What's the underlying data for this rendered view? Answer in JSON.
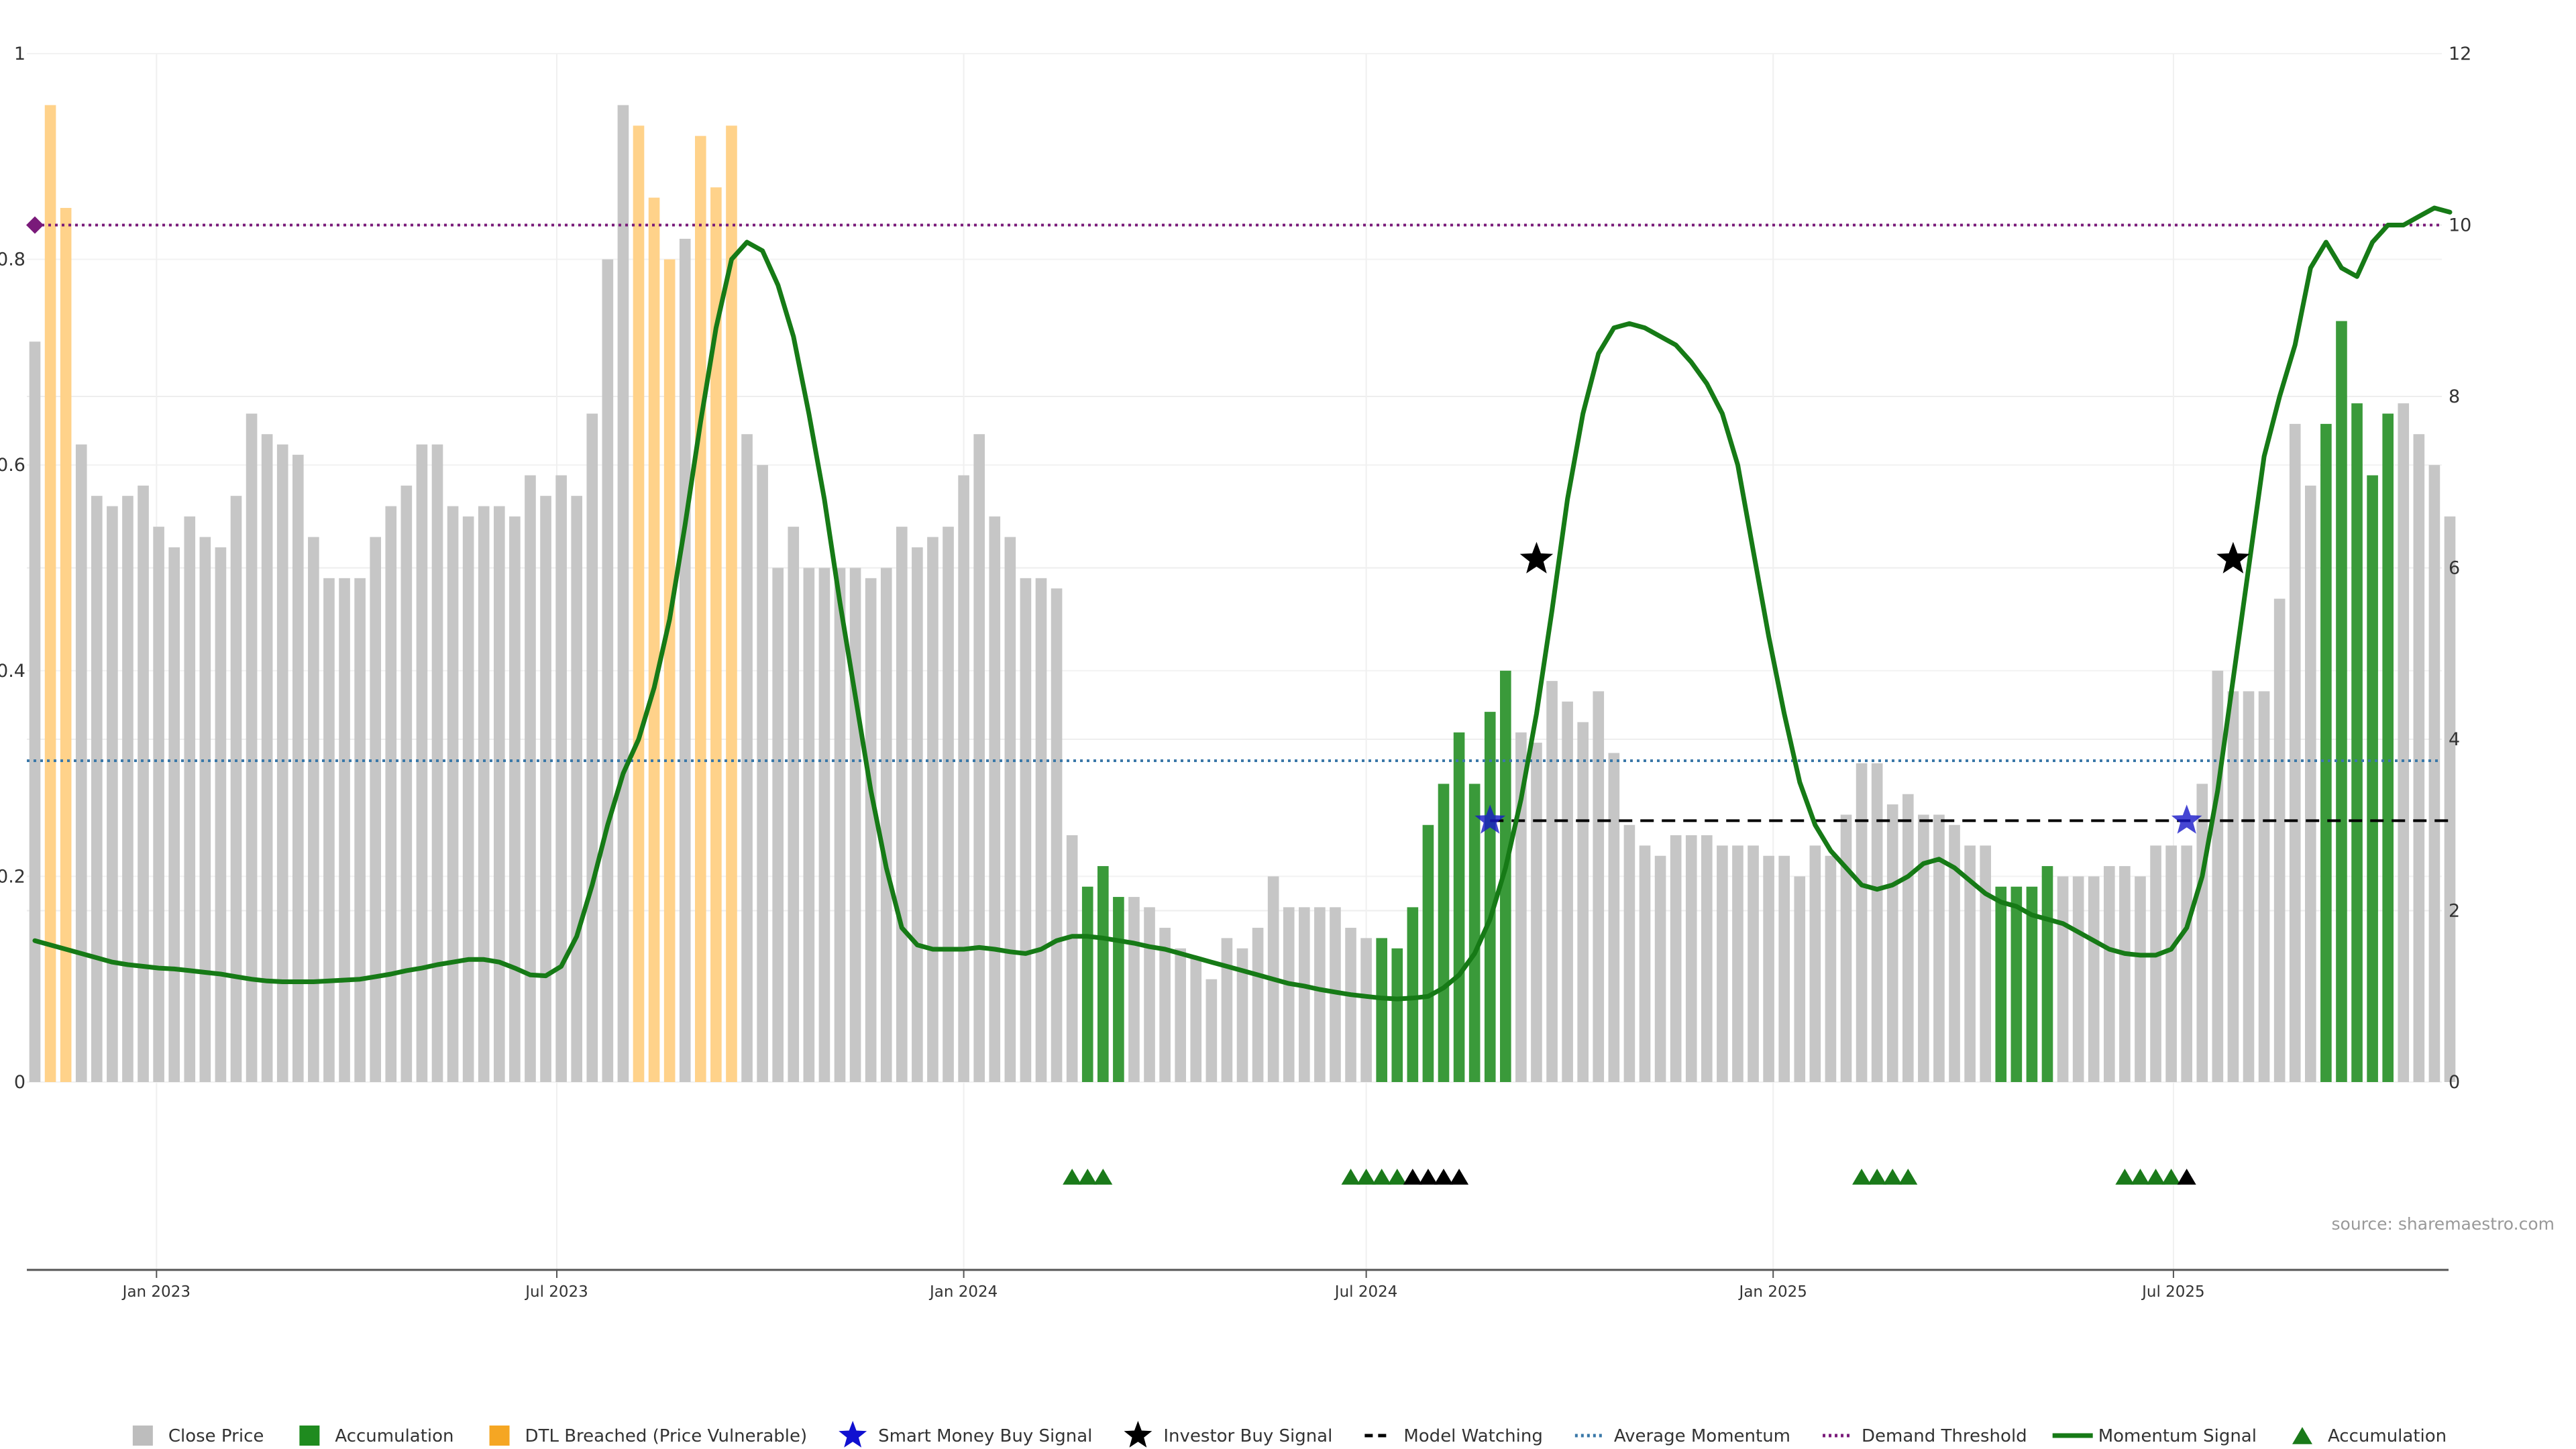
{
  "chart_data": {
    "type": "bar",
    "source_note": "source: sharemaestro.com",
    "left_axis": {
      "ticks": [
        0,
        0.2,
        0.4,
        0.6,
        0.8,
        1
      ],
      "tick_labels": [
        "0",
        "0.2",
        "0.4",
        "0.6",
        "0.8",
        "1"
      ],
      "ylim": [
        0,
        1
      ]
    },
    "right_axis": {
      "ticks": [
        0,
        2,
        4,
        6,
        8,
        10,
        12
      ],
      "tick_labels": [
        "0",
        "2",
        "4",
        "6",
        "8",
        "10",
        "12"
      ],
      "ylim": [
        0,
        12
      ]
    },
    "x_axis": {
      "start": "2022-11-07",
      "week_step": 1,
      "tick_dates": [
        "2023-01-01",
        "2023-07-01",
        "2024-01-01",
        "2024-07-01",
        "2025-01-01",
        "2025-07-01"
      ],
      "tick_labels": [
        "Jan 2023",
        "Jul 2023",
        "Jan 2024",
        "Jul 2024",
        "Jan 2025",
        "Jul 2025"
      ]
    },
    "bars": {
      "values": [
        0.72,
        0.95,
        0.85,
        0.62,
        0.57,
        0.56,
        0.57,
        0.58,
        0.54,
        0.52,
        0.55,
        0.53,
        0.52,
        0.57,
        0.65,
        0.63,
        0.62,
        0.61,
        0.53,
        0.49,
        0.49,
        0.49,
        0.53,
        0.56,
        0.58,
        0.62,
        0.62,
        0.56,
        0.55,
        0.56,
        0.56,
        0.55,
        0.59,
        0.57,
        0.59,
        0.57,
        0.65,
        0.8,
        0.95,
        0.93,
        0.86,
        0.8,
        0.82,
        0.92,
        0.87,
        0.93,
        0.63,
        0.6,
        0.5,
        0.54,
        0.5,
        0.5,
        0.5,
        0.5,
        0.49,
        0.5,
        0.54,
        0.52,
        0.53,
        0.54,
        0.59,
        0.63,
        0.55,
        0.53,
        0.49,
        0.49,
        0.48,
        0.24,
        0.19,
        0.21,
        0.18,
        0.18,
        0.17,
        0.15,
        0.13,
        0.12,
        0.1,
        0.14,
        0.13,
        0.15,
        0.2,
        0.17,
        0.17,
        0.17,
        0.17,
        0.15,
        0.14,
        0.14,
        0.13,
        0.17,
        0.25,
        0.29,
        0.34,
        0.29,
        0.36,
        0.4,
        0.34,
        0.33,
        0.39,
        0.37,
        0.35,
        0.38,
        0.32,
        0.25,
        0.23,
        0.22,
        0.24,
        0.24,
        0.24,
        0.23,
        0.23,
        0.23,
        0.22,
        0.22,
        0.2,
        0.23,
        0.22,
        0.26,
        0.31,
        0.31,
        0.27,
        0.28,
        0.26,
        0.26,
        0.25,
        0.23,
        0.23,
        0.19,
        0.19,
        0.19,
        0.21,
        0.2,
        0.2,
        0.2,
        0.21,
        0.21,
        0.2,
        0.23,
        0.23,
        0.23,
        0.29,
        0.4,
        0.38,
        0.38,
        0.38,
        0.47,
        0.64,
        0.58,
        0.64,
        0.74,
        0.66,
        0.59,
        0.65,
        0.66,
        0.63,
        0.6,
        0.55
      ],
      "kind_codes": "cddccccccccccccccccccccccccccccccccccccdddcdddccccccccccccccccccccccaaaccccccccccccccccaaaaaaaaacccccccccccccccccccccccccccccccaaaacccccccccccccccccaaaaaccccccccccccccccc"
    },
    "momentum_signal": [
      1.65,
      1.6,
      1.55,
      1.5,
      1.45,
      1.4,
      1.37,
      1.35,
      1.33,
      1.32,
      1.3,
      1.28,
      1.26,
      1.23,
      1.2,
      1.18,
      1.17,
      1.17,
      1.17,
      1.18,
      1.19,
      1.2,
      1.23,
      1.26,
      1.3,
      1.33,
      1.37,
      1.4,
      1.43,
      1.43,
      1.4,
      1.33,
      1.25,
      1.24,
      1.35,
      1.7,
      2.3,
      3.0,
      3.6,
      4.0,
      4.6,
      5.4,
      6.5,
      7.7,
      8.8,
      9.6,
      9.8,
      9.7,
      9.3,
      8.7,
      7.8,
      6.8,
      5.6,
      4.5,
      3.4,
      2.5,
      1.8,
      1.6,
      1.55,
      1.55,
      1.55,
      1.57,
      1.55,
      1.52,
      1.5,
      1.55,
      1.65,
      1.7,
      1.7,
      1.68,
      1.65,
      1.62,
      1.58,
      1.55,
      1.5,
      1.45,
      1.4,
      1.35,
      1.3,
      1.25,
      1.2,
      1.15,
      1.12,
      1.08,
      1.05,
      1.02,
      1.0,
      0.98,
      0.97,
      0.98,
      1.0,
      1.1,
      1.25,
      1.5,
      1.9,
      2.5,
      3.3,
      4.3,
      5.5,
      6.8,
      7.8,
      8.5,
      8.8,
      8.85,
      8.8,
      8.7,
      8.6,
      8.4,
      8.15,
      7.8,
      7.2,
      6.2,
      5.2,
      4.3,
      3.5,
      3.0,
      2.7,
      2.5,
      2.3,
      2.25,
      2.3,
      2.4,
      2.55,
      2.6,
      2.5,
      2.35,
      2.2,
      2.1,
      2.05,
      1.95,
      1.9,
      1.85,
      1.75,
      1.65,
      1.55,
      1.5,
      1.48,
      1.48,
      1.55,
      1.8,
      2.4,
      3.4,
      4.7,
      6.0,
      7.3,
      8.0,
      8.6,
      9.5,
      9.8,
      9.5,
      9.4,
      9.8,
      10.0,
      10.0,
      10.1,
      10.2,
      10.15
    ],
    "average_momentum": 3.75,
    "demand_threshold": 10.0,
    "model_watching": {
      "level": 3.05,
      "from_week": 94,
      "to_week": 156
    },
    "smart_money_buy_signals": [
      {
        "week": 94,
        "value": 3.05
      },
      {
        "week": 139,
        "value": 3.05
      }
    ],
    "investor_buy_signals": [
      {
        "week": 97,
        "value": 6.1
      },
      {
        "week": 142,
        "value": 6.1
      }
    ],
    "signal_markers": {
      "green_weeks": [
        67,
        68,
        69,
        85,
        86,
        87,
        88,
        118,
        119,
        120,
        121,
        135,
        136,
        137,
        138
      ],
      "black_weeks": [
        89,
        90,
        91,
        92,
        139
      ]
    },
    "colors": {
      "close_price": "#c6c6c6",
      "accumulation": "#3a9a3a",
      "dtl_breached": "#ffd28a",
      "momentum": "#167a16",
      "average_momentum": "#3a78a8",
      "demand_threshold": "#7a1a7a",
      "smart_money": "#1818c8",
      "investor": "#000000",
      "model_watching": "#000000",
      "marker_green": "#1a7a1a",
      "marker_black": "#000000"
    },
    "legend": {
      "placement": "bottom",
      "entries": [
        {
          "label": "Close Price",
          "swatch": "square",
          "color": "#bdbdbd"
        },
        {
          "label": "Accumulation",
          "swatch": "square",
          "color": "#1f8b1f"
        },
        {
          "label": "DTL Breached (Price Vulnerable)",
          "swatch": "square",
          "color": "#f5a623"
        },
        {
          "label": "Smart Money Buy Signal",
          "swatch": "star",
          "color": "#1010d0"
        },
        {
          "label": "Investor Buy Signal",
          "swatch": "star",
          "color": "#000000"
        },
        {
          "label": "Model Watching",
          "swatch": "dashed",
          "color": "#000000"
        },
        {
          "label": "Average Momentum",
          "swatch": "dotted",
          "color": "#3a78a8"
        },
        {
          "label": "Demand Threshold",
          "swatch": "dotted",
          "color": "#7a1a7a"
        },
        {
          "label": "Momentum Signal",
          "swatch": "line",
          "color": "#167a16"
        },
        {
          "label": "Accumulation",
          "swatch": "triangle",
          "color": "#1a7a1a"
        }
      ]
    },
    "grid": true
  }
}
